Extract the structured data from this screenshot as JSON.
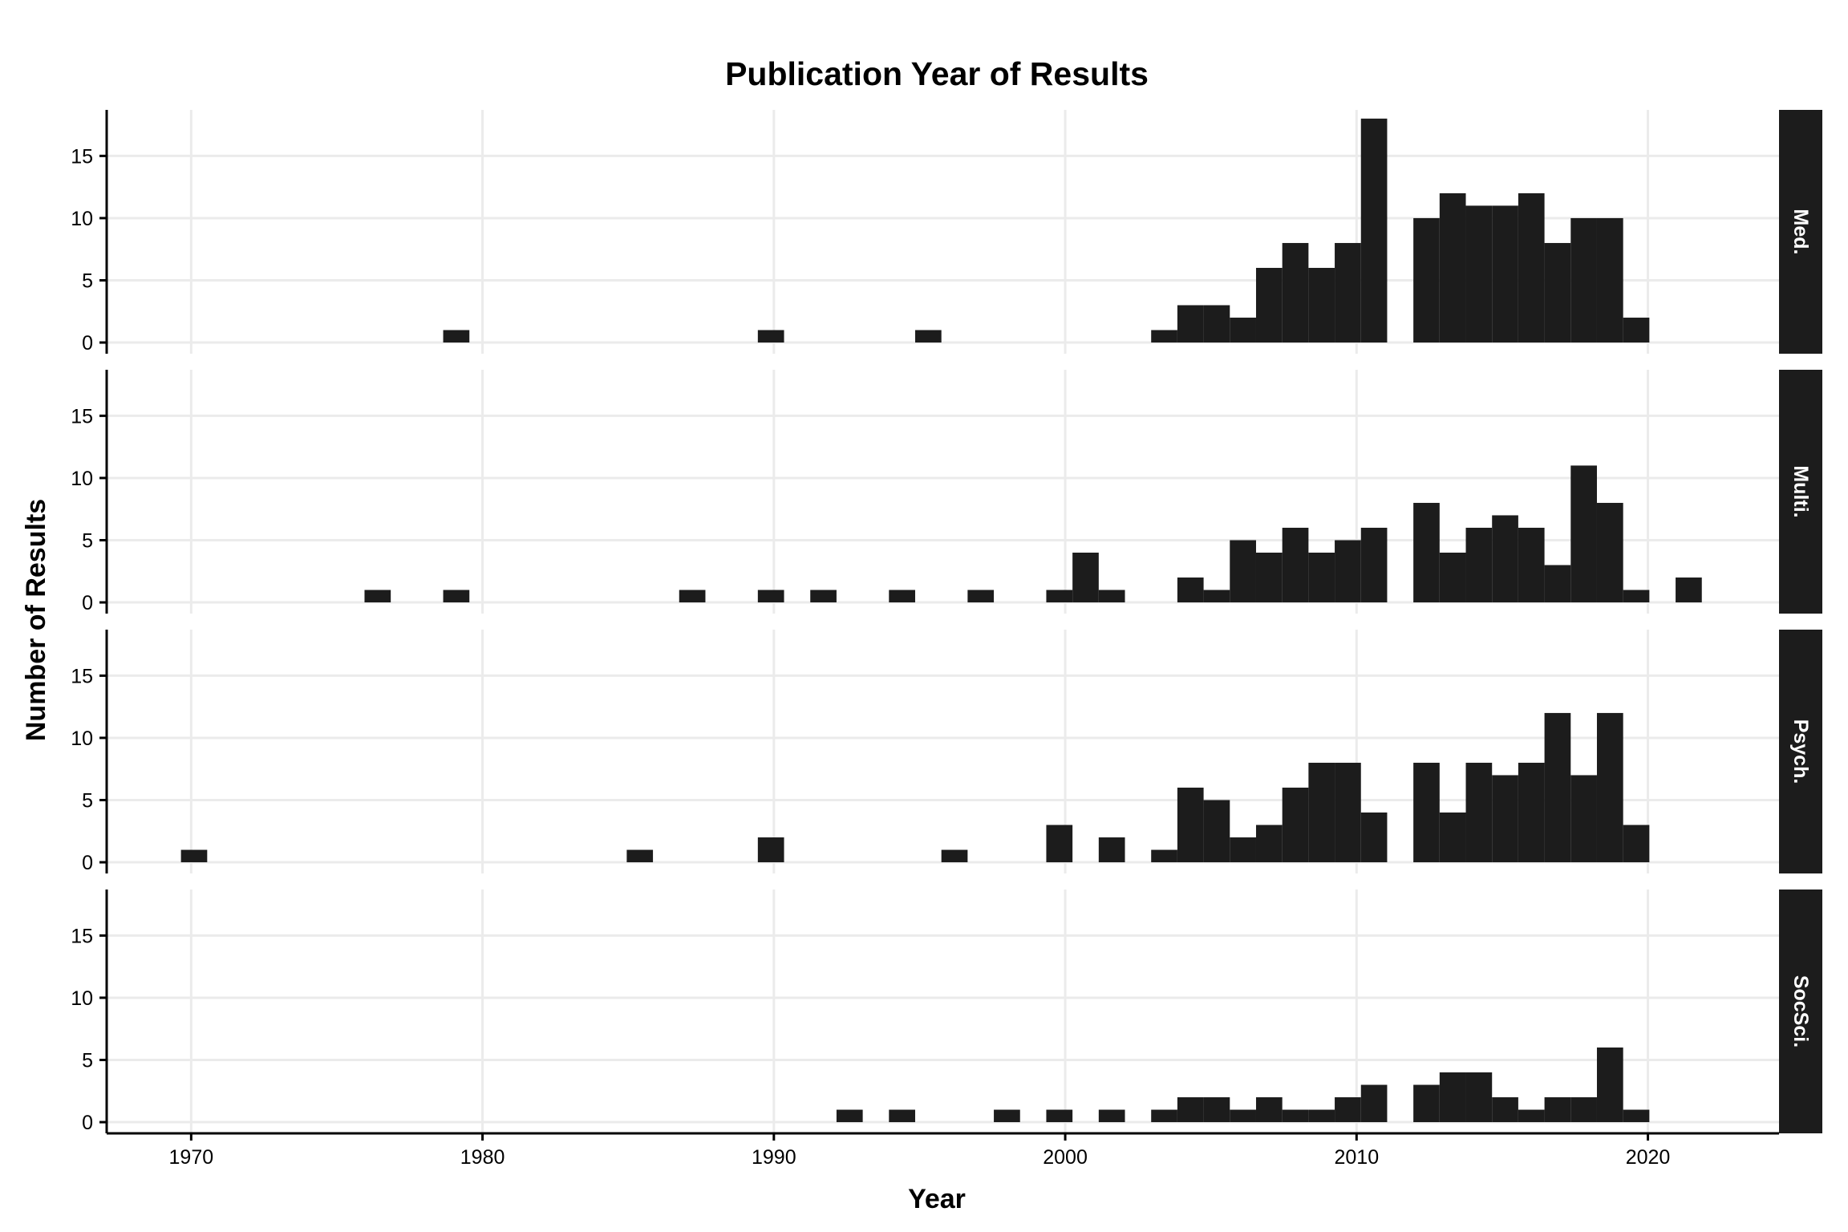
{
  "chart_data": {
    "type": "bar",
    "title": "Publication Year of Results",
    "xlabel": "Year",
    "ylabel": "Number of Results",
    "x_ticks": [
      1970,
      1980,
      1990,
      2000,
      2010,
      2020
    ],
    "y_ticks": [
      0,
      5,
      10,
      15
    ],
    "xlim": [
      1967.1,
      2024.5
    ],
    "ylim": [
      -0.9,
      18.7
    ],
    "bin_width": 0.9,
    "grid": true,
    "bar_color": "#1c1c1c",
    "strip_color": "#1c1c1c",
    "strip_text_color": "#ffffff",
    "panels": [
      {
        "name": "Med.",
        "bins": [
          {
            "x": 1979.1,
            "y": 1
          },
          {
            "x": 1989.9,
            "y": 1
          },
          {
            "x": 1995.3,
            "y": 1
          },
          {
            "x": 2003.4,
            "y": 1
          },
          {
            "x": 2004.3,
            "y": 3
          },
          {
            "x": 2005.2,
            "y": 3
          },
          {
            "x": 2006.1,
            "y": 2
          },
          {
            "x": 2007.0,
            "y": 6
          },
          {
            "x": 2007.9,
            "y": 8
          },
          {
            "x": 2008.8,
            "y": 6
          },
          {
            "x": 2009.7,
            "y": 8
          },
          {
            "x": 2010.6,
            "y": 18
          },
          {
            "x": 2012.4,
            "y": 10
          },
          {
            "x": 2013.3,
            "y": 12
          },
          {
            "x": 2014.2,
            "y": 11
          },
          {
            "x": 2015.1,
            "y": 11
          },
          {
            "x": 2016.0,
            "y": 12
          },
          {
            "x": 2016.9,
            "y": 8
          },
          {
            "x": 2017.8,
            "y": 10
          },
          {
            "x": 2018.7,
            "y": 10
          },
          {
            "x": 2019.6,
            "y": 2
          }
        ]
      },
      {
        "name": "Multi.",
        "bins": [
          {
            "x": 1976.4,
            "y": 1
          },
          {
            "x": 1979.1,
            "y": 1
          },
          {
            "x": 1987.2,
            "y": 1
          },
          {
            "x": 1989.9,
            "y": 1
          },
          {
            "x": 1991.7,
            "y": 1
          },
          {
            "x": 1994.4,
            "y": 1
          },
          {
            "x": 1997.1,
            "y": 1
          },
          {
            "x": 1999.8,
            "y": 1
          },
          {
            "x": 2000.7,
            "y": 4
          },
          {
            "x": 2001.6,
            "y": 1
          },
          {
            "x": 2004.3,
            "y": 2
          },
          {
            "x": 2005.2,
            "y": 1
          },
          {
            "x": 2006.1,
            "y": 5
          },
          {
            "x": 2007.0,
            "y": 4
          },
          {
            "x": 2007.9,
            "y": 6
          },
          {
            "x": 2008.8,
            "y": 4
          },
          {
            "x": 2009.7,
            "y": 5
          },
          {
            "x": 2010.6,
            "y": 6
          },
          {
            "x": 2012.4,
            "y": 8
          },
          {
            "x": 2013.3,
            "y": 4
          },
          {
            "x": 2014.2,
            "y": 6
          },
          {
            "x": 2015.1,
            "y": 7
          },
          {
            "x": 2016.0,
            "y": 6
          },
          {
            "x": 2016.9,
            "y": 3
          },
          {
            "x": 2017.8,
            "y": 11
          },
          {
            "x": 2018.7,
            "y": 8
          },
          {
            "x": 2019.6,
            "y": 1
          },
          {
            "x": 2021.4,
            "y": 2
          }
        ]
      },
      {
        "name": "Psych.",
        "bins": [
          {
            "x": 1970.1,
            "y": 1
          },
          {
            "x": 1985.4,
            "y": 1
          },
          {
            "x": 1989.9,
            "y": 2
          },
          {
            "x": 1996.2,
            "y": 1
          },
          {
            "x": 1999.8,
            "y": 3
          },
          {
            "x": 2001.6,
            "y": 2
          },
          {
            "x": 2003.4,
            "y": 1
          },
          {
            "x": 2004.3,
            "y": 6
          },
          {
            "x": 2005.2,
            "y": 5
          },
          {
            "x": 2006.1,
            "y": 2
          },
          {
            "x": 2007.0,
            "y": 3
          },
          {
            "x": 2007.9,
            "y": 6
          },
          {
            "x": 2008.8,
            "y": 8
          },
          {
            "x": 2009.7,
            "y": 8
          },
          {
            "x": 2010.6,
            "y": 4
          },
          {
            "x": 2012.4,
            "y": 8
          },
          {
            "x": 2013.3,
            "y": 4
          },
          {
            "x": 2014.2,
            "y": 8
          },
          {
            "x": 2015.1,
            "y": 7
          },
          {
            "x": 2016.0,
            "y": 8
          },
          {
            "x": 2016.9,
            "y": 12
          },
          {
            "x": 2017.8,
            "y": 7
          },
          {
            "x": 2018.7,
            "y": 12
          },
          {
            "x": 2019.6,
            "y": 3
          }
        ]
      },
      {
        "name": "SocSci.",
        "bins": [
          {
            "x": 1992.6,
            "y": 1
          },
          {
            "x": 1994.4,
            "y": 1
          },
          {
            "x": 1998.0,
            "y": 1
          },
          {
            "x": 1999.8,
            "y": 1
          },
          {
            "x": 2001.6,
            "y": 1
          },
          {
            "x": 2003.4,
            "y": 1
          },
          {
            "x": 2004.3,
            "y": 2
          },
          {
            "x": 2005.2,
            "y": 2
          },
          {
            "x": 2006.1,
            "y": 1
          },
          {
            "x": 2007.0,
            "y": 2
          },
          {
            "x": 2007.9,
            "y": 1
          },
          {
            "x": 2008.8,
            "y": 1
          },
          {
            "x": 2009.7,
            "y": 2
          },
          {
            "x": 2010.6,
            "y": 3
          },
          {
            "x": 2012.4,
            "y": 3
          },
          {
            "x": 2013.3,
            "y": 4
          },
          {
            "x": 2014.2,
            "y": 4
          },
          {
            "x": 2015.1,
            "y": 2
          },
          {
            "x": 2016.0,
            "y": 1
          },
          {
            "x": 2016.9,
            "y": 2
          },
          {
            "x": 2017.8,
            "y": 2
          },
          {
            "x": 2018.7,
            "y": 6
          },
          {
            "x": 2019.6,
            "y": 1
          }
        ]
      }
    ]
  }
}
